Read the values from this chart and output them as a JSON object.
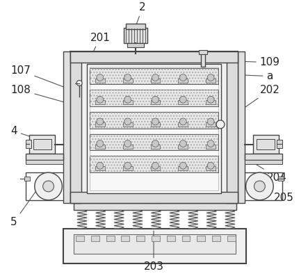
{
  "bg_color": "#ffffff",
  "lc": "#444444",
  "lc_thin": "#555555",
  "fc_light": "#f2f2f2",
  "fc_mid": "#e0e0e0",
  "fc_dark": "#cccccc",
  "fc_inner": "#f8f8f8",
  "fc_tray": "#ebebeb",
  "label_fontsize": 11,
  "annotation_color": "#222222",
  "arrow_color": "#555555"
}
